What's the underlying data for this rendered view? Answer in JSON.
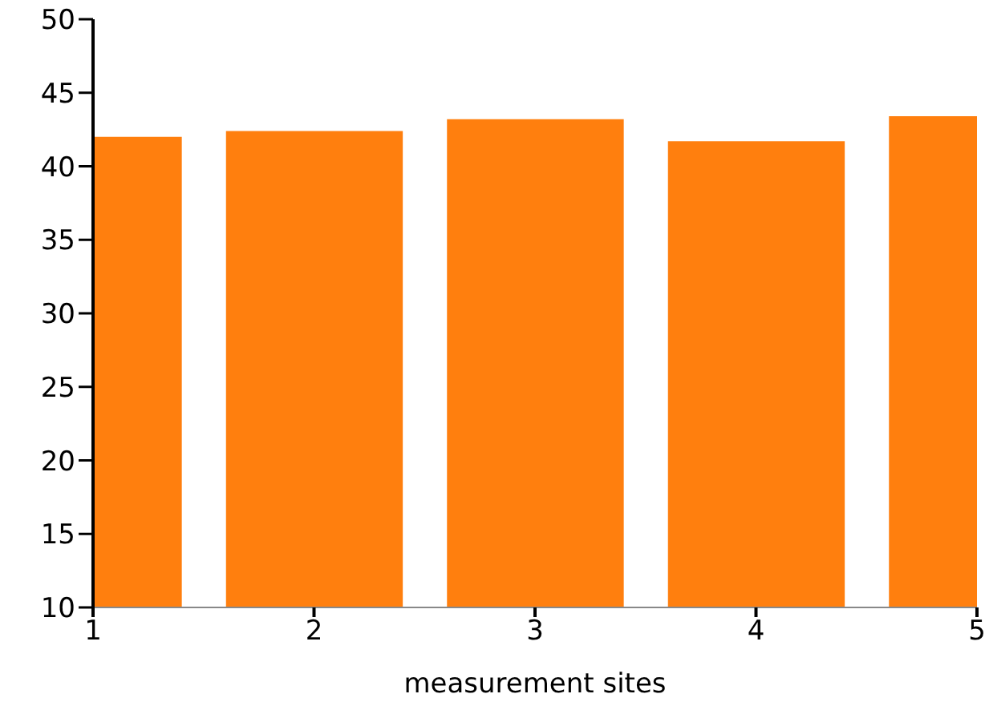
{
  "chart_data": {
    "type": "bar",
    "xlabel": "measurement sites",
    "x": [
      1,
      2,
      3,
      4,
      5
    ],
    "values": [
      42.0,
      42.4,
      43.2,
      41.7,
      43.4
    ],
    "color": "#ff7f0e",
    "xlim": [
      1,
      5
    ],
    "xticks": [
      1,
      2,
      3,
      4,
      5
    ],
    "ylim": [
      10,
      50
    ],
    "yticks": [
      10,
      15,
      20,
      25,
      30,
      35,
      40,
      45,
      50
    ],
    "grid": false,
    "legend": false
  }
}
